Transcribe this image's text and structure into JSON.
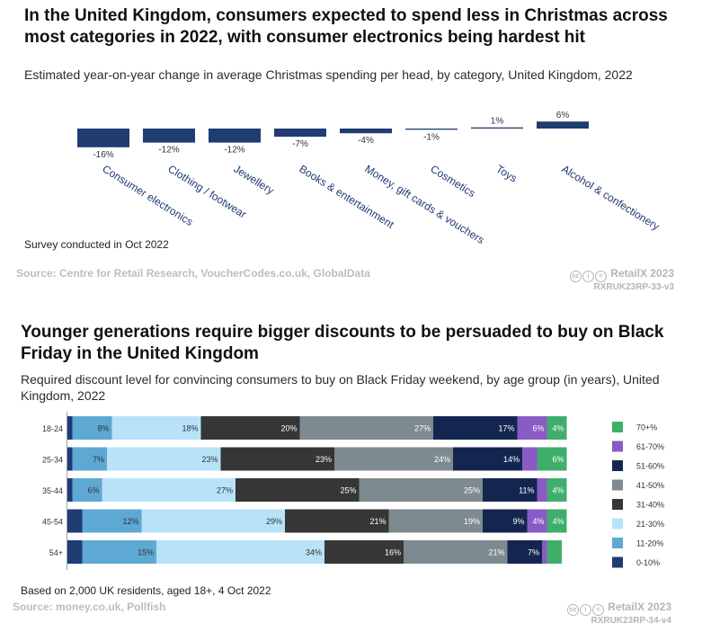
{
  "chart1": {
    "title": "In the United Kingdom, consumers expected to spend less in Christmas across most categories in 2022, with consumer electronics being hardest hit",
    "subtitle": "Estimated year-on-year change in average Christmas spending per head, by category, United Kingdom, 2022",
    "note": "Survey conducted in Oct 2022",
    "source": "Source: Centre for Retail Research, VoucherCodes.co.uk, GlobalData",
    "brand": "RetailX 2023",
    "code": "RXRUK23RP-33-v3"
  },
  "chart2": {
    "title": "Younger generations require bigger discounts to be persuaded to buy on Black Friday in the United Kingdom",
    "subtitle": "Required discount level for convincing consumers to buy on Black Friday weekend, by age group (in years), United Kingdom, 2022",
    "note": "Based on 2,000 UK residents, aged 18+, 4 Oct 2022",
    "source": "Source: money.co.uk, Pollfish",
    "brand": "RetailX 2023",
    "code": "RXRUK23RP-34-v4"
  },
  "chart_data": [
    {
      "type": "bar",
      "title": "In the United Kingdom, consumers expected to spend less in Christmas across most categories in 2022, with consumer electronics being hardest hit",
      "categories": [
        "Consumer electronics",
        "Clothing / footwear",
        "Jewellery",
        "Books & entertainment",
        "Money, gift cards & vouchers",
        "Cosmetics",
        "Toys",
        "Alcohol & confectionery"
      ],
      "values": [
        -16,
        -12,
        -12,
        -7,
        -4,
        -1,
        1,
        6
      ],
      "labels": [
        "-16%",
        "-12%",
        "-12%",
        "-7%",
        "-4%",
        "-1%",
        "1%",
        "6%"
      ],
      "unit": "%",
      "ylim": [
        -16,
        6
      ],
      "colors": {
        "bar": "#1f3c73"
      }
    },
    {
      "type": "bar",
      "stacked": "horizontal-100",
      "title": "Younger generations require bigger discounts to be persuaded to buy on Black Friday in the United Kingdom",
      "categories": [
        "18-24",
        "25-34",
        "35-44",
        "45-54",
        "54+"
      ],
      "series": [
        {
          "name": "0-10%",
          "color": "#1f3c73",
          "values": [
            1,
            1,
            1,
            3,
            3
          ]
        },
        {
          "name": "11-20%",
          "color": "#5ea8d4",
          "values": [
            8,
            7,
            6,
            12,
            15
          ]
        },
        {
          "name": "21-30%",
          "color": "#b8e2f8",
          "values": [
            18,
            23,
            27,
            29,
            34
          ]
        },
        {
          "name": "31-40%",
          "color": "#363636",
          "values": [
            20,
            23,
            25,
            21,
            16
          ]
        },
        {
          "name": "41-50%",
          "color": "#7d8a90",
          "values": [
            27,
            24,
            25,
            19,
            21
          ]
        },
        {
          "name": "51-60%",
          "color": "#142650",
          "values": [
            17,
            14,
            11,
            9,
            7
          ]
        },
        {
          "name": "61-70%",
          "color": "#8a5bc6",
          "values": [
            6,
            3,
            2,
            4,
            1
          ]
        },
        {
          "name": "70+%",
          "color": "#3fae6a",
          "values": [
            4,
            6,
            4,
            4,
            3
          ]
        }
      ],
      "legend_order": [
        "70+%",
        "61-70%",
        "51-60%",
        "41-50%",
        "31-40%",
        "21-30%",
        "11-20%",
        "0-10%"
      ],
      "xlim": [
        0,
        100
      ],
      "unit": "%"
    }
  ]
}
